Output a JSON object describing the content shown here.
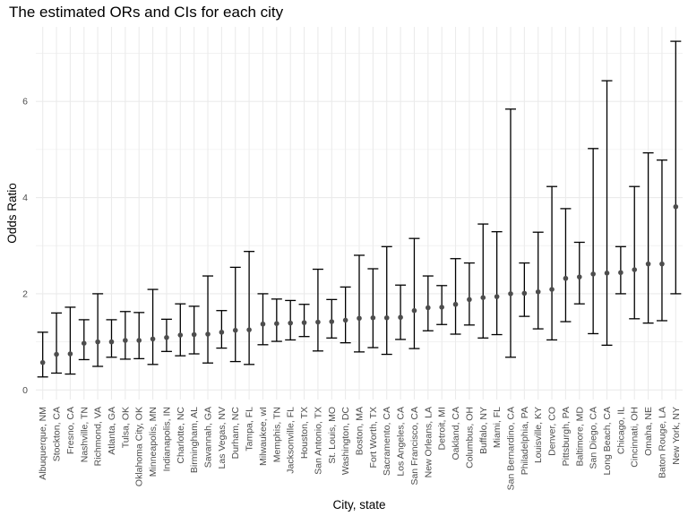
{
  "chart_data": {
    "type": "scatter",
    "title": "The estimated ORs and CIs for each city",
    "xlabel": "City, state",
    "ylabel": "Odds Ratio",
    "ylim": [
      0,
      7.25
    ],
    "yticks": [
      0,
      2,
      4,
      6
    ],
    "grid": true,
    "legend": "none",
    "colors": {
      "point": "#4d4d4d",
      "errorbar": "#000000",
      "grid": "#ebebeb",
      "background": "#ffffff"
    },
    "categories": [
      "Albuquerque, NM",
      "Stockton, CA",
      "Fresno, CA",
      "Nashville, TN",
      "Richmond, VA",
      "Atlanta, GA",
      "Tulsa, OK",
      "Oklahoma City, OK",
      "Minneapolis, MN",
      "Indianapolis, IN",
      "Charlotte, NC",
      "Birmingham, AL",
      "Savannah, GA",
      "Las Vegas, NV",
      "Durham, NC",
      "Tampa, FL",
      "Milwaukee, wI",
      "Memphis, TN",
      "Jacksonville, FL",
      "Houston, TX",
      "San Antonio, TX",
      "St. Louis, MO",
      "Washington, DC",
      "Boston, MA",
      "Fort Worth, TX",
      "Sacramento, CA",
      "Los Angeles, CA",
      "San Francisco, CA",
      "New Orleans, LA",
      "Detroit, MI",
      "Oakland, CA",
      "Columbus, OH",
      "Buffalo, NY",
      "Miami, FL",
      "San Bernardino, CA",
      "Philadelphia, PA",
      "Louisville, KY",
      "Denver, CO",
      "Pittsburgh, PA",
      "Baltimore, MD",
      "San Diego, CA",
      "Long Beach, CA",
      "Chicago, IL",
      "Cincinnati, OH",
      "Omaha, NE",
      "Baton Rouge, LA",
      "New York, NY"
    ],
    "series": [
      {
        "estimate": [
          0.57,
          0.74,
          0.75,
          0.97,
          1.0,
          1.0,
          1.03,
          1.03,
          1.06,
          1.09,
          1.14,
          1.15,
          1.16,
          1.2,
          1.24,
          1.25,
          1.37,
          1.38,
          1.39,
          1.4,
          1.41,
          1.42,
          1.45,
          1.49,
          1.5,
          1.5,
          1.51,
          1.65,
          1.71,
          1.72,
          1.78,
          1.88,
          1.92,
          1.94,
          2.0,
          2.01,
          2.04,
          2.09,
          2.32,
          2.35,
          2.41,
          2.43,
          2.44,
          2.5,
          2.62,
          2.62,
          3.81
        ],
        "ci_low": [
          0.27,
          0.35,
          0.33,
          0.63,
          0.49,
          0.68,
          0.64,
          0.65,
          0.53,
          0.8,
          0.71,
          0.75,
          0.56,
          0.87,
          0.59,
          0.53,
          0.94,
          1.01,
          1.04,
          1.11,
          0.81,
          1.08,
          0.98,
          0.79,
          0.88,
          0.74,
          1.05,
          0.86,
          1.23,
          1.36,
          1.16,
          1.35,
          1.08,
          1.15,
          0.68,
          1.53,
          1.27,
          1.04,
          1.42,
          1.79,
          1.17,
          0.93,
          2.0,
          1.48,
          1.39,
          1.44,
          2.0
        ],
        "ci_high": [
          1.2,
          1.6,
          1.72,
          1.46,
          2.0,
          1.46,
          1.63,
          1.61,
          2.09,
          1.47,
          1.79,
          1.74,
          2.37,
          1.65,
          2.55,
          2.88,
          2.0,
          1.89,
          1.86,
          1.78,
          2.51,
          1.88,
          2.14,
          2.8,
          2.52,
          2.98,
          2.18,
          3.15,
          2.37,
          2.17,
          2.73,
          2.64,
          3.45,
          3.29,
          5.84,
          2.64,
          3.28,
          4.23,
          3.77,
          3.07,
          5.02,
          6.43,
          2.98,
          4.23,
          4.93,
          4.78,
          7.25
        ]
      }
    ]
  }
}
